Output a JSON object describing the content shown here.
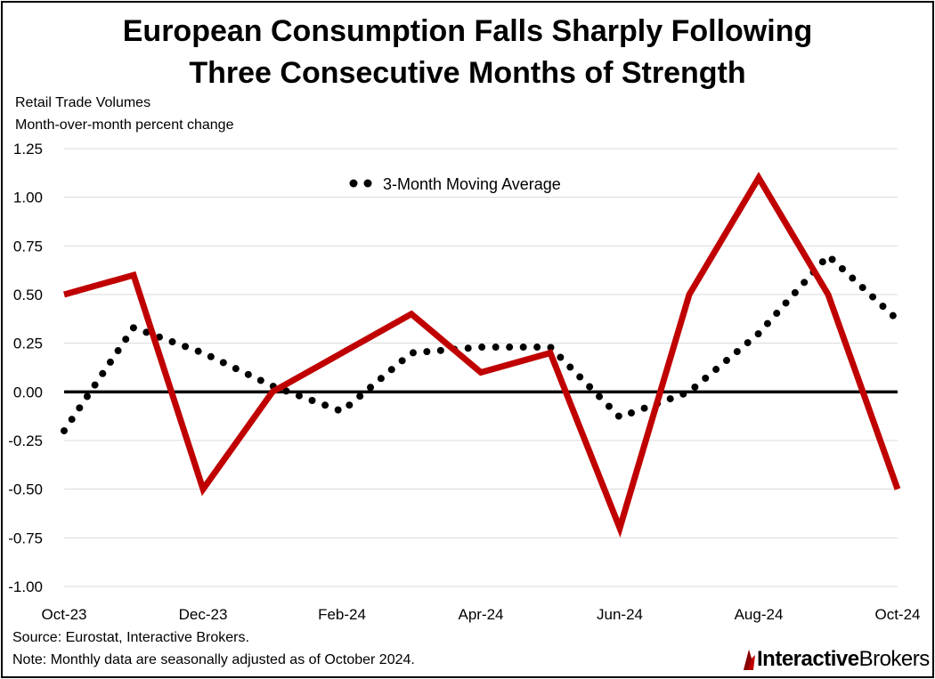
{
  "title_line1": "European Consumption Falls Sharply Following",
  "title_line2": "Three Consecutive Months of Strength",
  "subtitle_line1": "Retail Trade Volumes",
  "subtitle_line2": "Month-over-month percent change",
  "source": "Source: Eurostat, Interactive Brokers.",
  "note": "Note: Monthly data are seasonally adjusted as of October 2024.",
  "logo": {
    "bold": "Interactive",
    "regular": "Brokers"
  },
  "colors": {
    "series": "#c00000",
    "average": "#000000",
    "zero": "#000000",
    "grid": "#d9d9d9"
  },
  "chart_data": {
    "type": "line",
    "title": "European Consumption Falls Sharply Following Three Consecutive Months of Strength",
    "ylabel": "Month-over-month percent change",
    "ylim": [
      -1.0,
      1.25
    ],
    "y_ticks": [
      1.25,
      1.0,
      0.75,
      0.5,
      0.25,
      0.0,
      -0.25,
      -0.5,
      -0.75,
      -1.0
    ],
    "y_tick_labels": [
      "1.25",
      "1.00",
      "0.75",
      "0.50",
      "0.25",
      "0.00",
      "-0.25",
      "-0.50",
      "-0.75",
      "-1.00"
    ],
    "categories": [
      "Oct-23",
      "Nov-23",
      "Dec-23",
      "Jan-24",
      "Feb-24",
      "Mar-24",
      "Apr-24",
      "May-24",
      "Jun-24",
      "Jul-24",
      "Aug-24",
      "Sep-24",
      "Oct-24"
    ],
    "x_tick_labels": [
      "Oct-23",
      "Dec-23",
      "Feb-24",
      "Apr-24",
      "Jun-24",
      "Aug-24",
      "Oct-24"
    ],
    "x_tick_indices": [
      0,
      2,
      4,
      6,
      8,
      10,
      12
    ],
    "grid": true,
    "series": [
      {
        "name": "Retail Trade Volumes",
        "style": "solid",
        "values": [
          0.5,
          0.6,
          -0.5,
          0.0,
          0.2,
          0.4,
          0.1,
          0.2,
          -0.7,
          0.5,
          1.1,
          0.5,
          -0.5
        ]
      },
      {
        "name": "3-Month Moving Average",
        "style": "dotted",
        "values": [
          -0.2,
          0.33,
          0.2,
          0.03,
          -0.1,
          0.2,
          0.23,
          0.23,
          -0.13,
          0.0,
          0.3,
          0.7,
          0.37
        ]
      }
    ],
    "legend": {
      "label": "3-Month Moving Average",
      "position": "top-center"
    }
  }
}
